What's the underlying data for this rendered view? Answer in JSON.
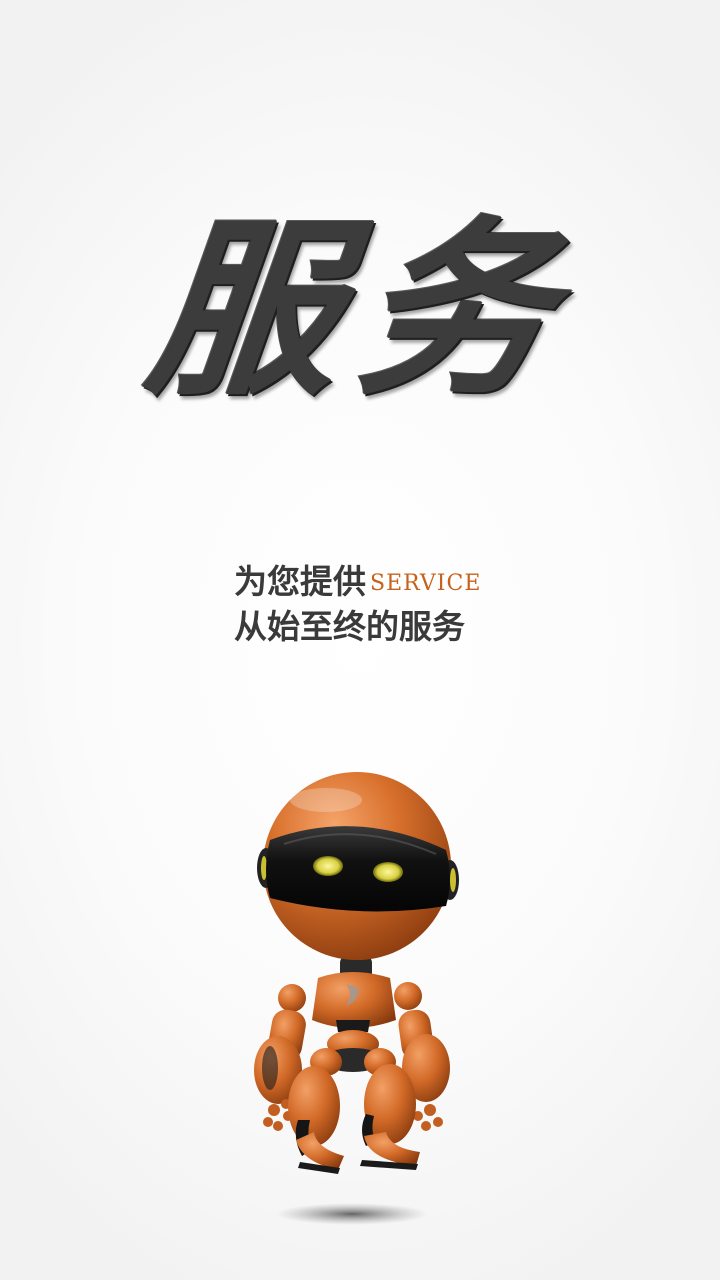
{
  "hero": {
    "title": "服务"
  },
  "tagline": {
    "line1_text": "为您提供",
    "line1_accent": "SERVICE",
    "line2_text": "从始至终的服务"
  },
  "colors": {
    "title": "#3c3c3c",
    "tagline": "#3a3a3a",
    "accent": "#c7621d",
    "robot_body": "#d86f2c",
    "robot_visor": "#151515",
    "robot_eyes": "#e9e25a"
  },
  "illustration": {
    "icon": "orange-robot-icon"
  }
}
